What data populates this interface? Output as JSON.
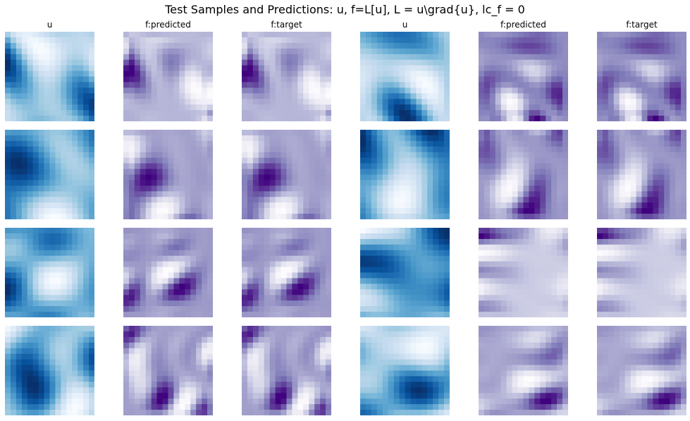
{
  "title": "Test Samples and Predictions: u, f=L[u], L = u\\grad{u}, lc_f = 0",
  "chart_data": {
    "type": "heatmap",
    "title": "Test Samples and Predictions: u, f=L[u], L = u\\grad{u}, lc_f = 0",
    "grid_rows": 4,
    "column_titles": [
      "u",
      "f:predicted",
      "f:target",
      "u",
      "f:predicted",
      "f:target"
    ],
    "colormaps": {
      "u": "Blues",
      "f:predicted": "Purples",
      "f:target": "Purples"
    },
    "axes_visible": false,
    "cell_resolution": [
      16,
      16
    ]
  }
}
